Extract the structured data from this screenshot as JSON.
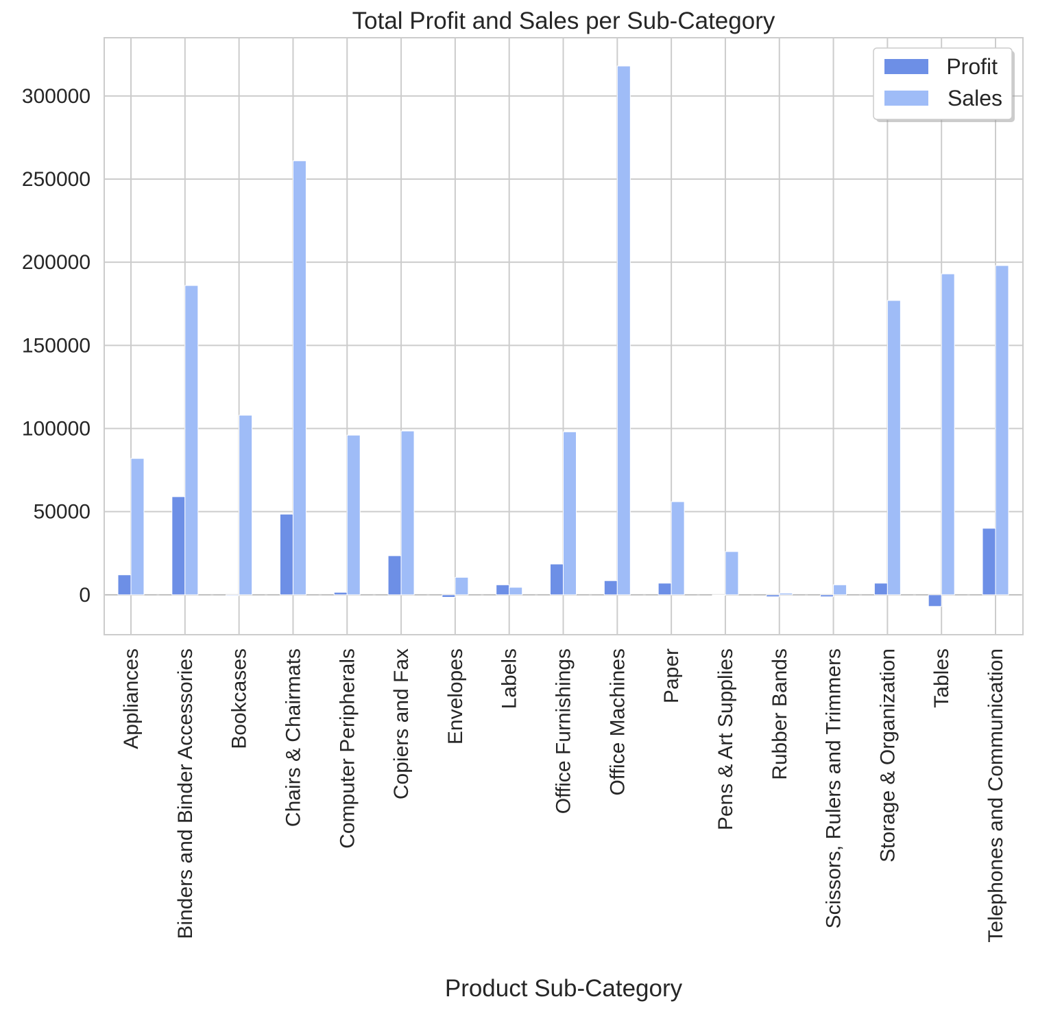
{
  "chart_data": {
    "type": "bar",
    "title": "Total Profit and Sales per Sub-Category",
    "xlabel": "Product Sub-Category",
    "ylabel": "",
    "categories": [
      "Appliances",
      "Binders and Binder Accessories",
      "Bookcases",
      "Chairs & Chairmats",
      "Computer Peripherals",
      "Copiers and Fax",
      "Envelopes",
      "Labels",
      "Office Furnishings",
      "Office Machines",
      "Paper",
      "Pens & Art Supplies",
      "Rubber Bands",
      "Scissors, Rulers and Trimmers",
      "Storage & Organization",
      "Tables",
      "Telephones and Communication"
    ],
    "series": [
      {
        "name": "Profit",
        "color": "#6d8fe6",
        "values": [
          12000,
          59000,
          -500,
          48500,
          1500,
          23500,
          -1500,
          6000,
          18500,
          8500,
          7000,
          -300,
          -1200,
          -1200,
          7000,
          -7000,
          40000
        ]
      },
      {
        "name": "Sales",
        "color": "#9fbcf7",
        "values": [
          82000,
          186000,
          108000,
          261000,
          96000,
          98500,
          10500,
          4500,
          98000,
          318000,
          56000,
          26000,
          1000,
          6000,
          177000,
          193000,
          198000
        ]
      }
    ],
    "ylim": [
      -24000,
      335000
    ],
    "yticks": [
      0,
      50000,
      100000,
      150000,
      200000,
      250000,
      300000
    ],
    "ytick_labels": [
      "0",
      "50000",
      "100000",
      "150000",
      "200000",
      "250000",
      "300000"
    ],
    "grid": true,
    "legend_position": "top-right"
  }
}
